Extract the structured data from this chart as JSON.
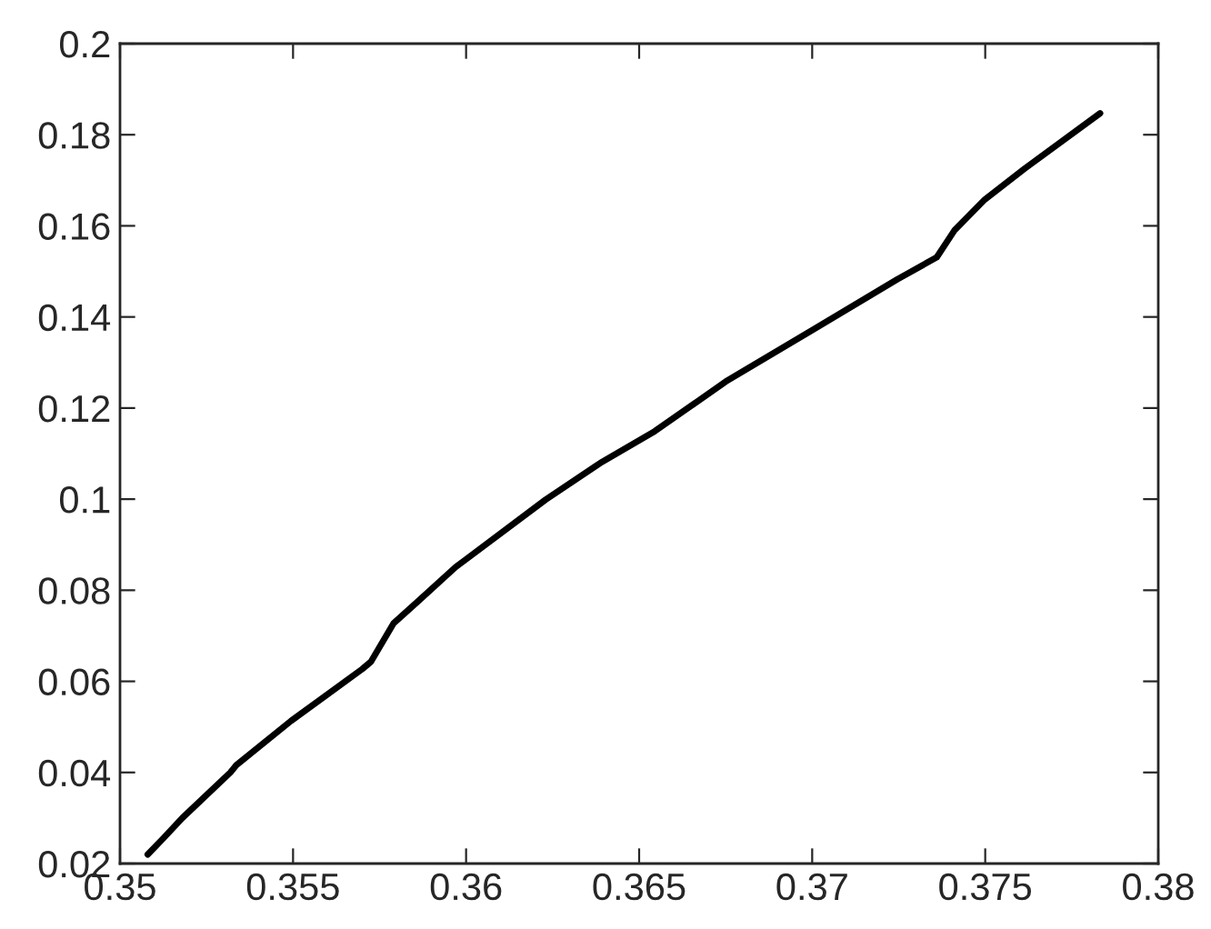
{
  "chart_data": {
    "type": "line",
    "xlim": [
      0.35,
      0.38
    ],
    "xticks": [
      0.35,
      0.355,
      0.36,
      0.365,
      0.37,
      0.375,
      0.38
    ],
    "ylim": [
      0.02,
      0.2
    ],
    "yticks": [
      0.02,
      0.04,
      0.06,
      0.08,
      0.1,
      0.12,
      0.14,
      0.16,
      0.18,
      0.2
    ],
    "grid": false,
    "legend": false,
    "marker": "none",
    "line_style": "solid",
    "series": [
      {
        "color": "#000000",
        "x": [
          0.3508,
          0.35126,
          0.3518,
          0.35319,
          0.35336,
          0.35494,
          0.357,
          0.35725,
          0.3579,
          0.3586,
          0.3597,
          0.3623,
          0.36387,
          0.36545,
          0.3675,
          0.37,
          0.37245,
          0.3736,
          0.37412,
          0.37499,
          0.37613,
          0.37832
        ],
        "values": [
          0.022,
          0.0256,
          0.03,
          0.04,
          0.0416,
          0.0513,
          0.0627,
          0.0643,
          0.0727,
          0.0775,
          0.0851,
          0.0999,
          0.1079,
          0.1149,
          0.1258,
          0.1371,
          0.1482,
          0.1531,
          0.1591,
          0.1658,
          0.1725,
          0.1847
        ]
      }
    ]
  }
}
